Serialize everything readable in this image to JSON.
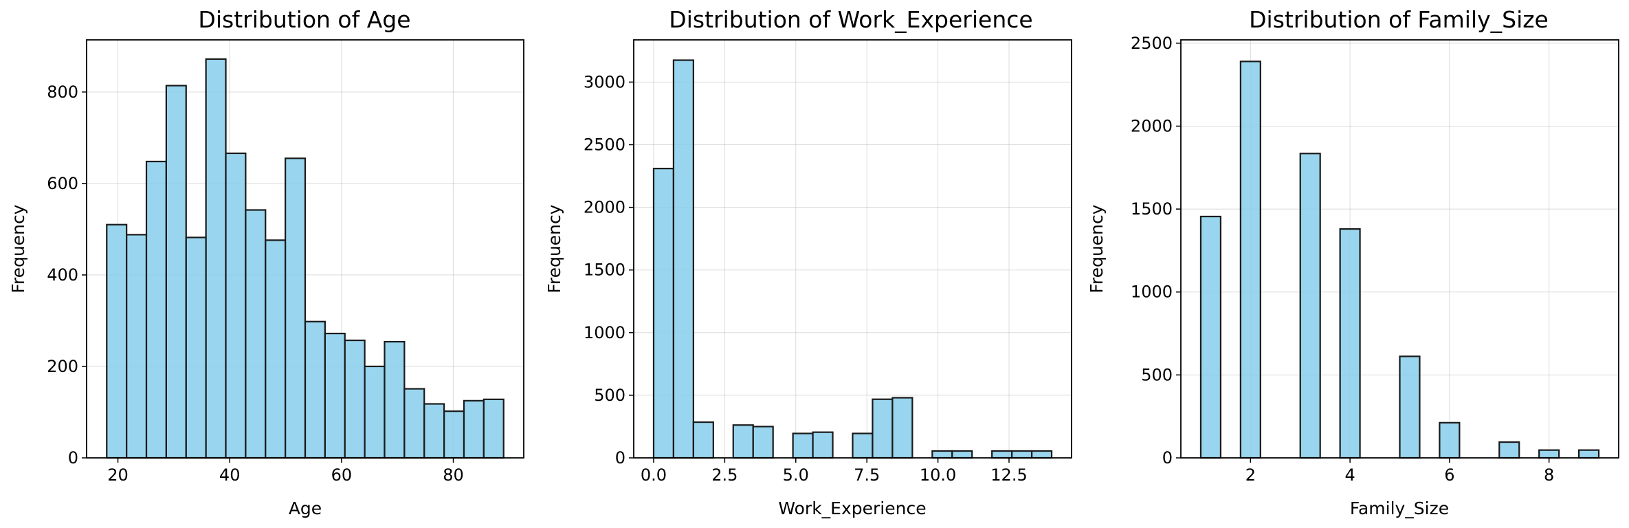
{
  "colors": {
    "bar_fill": "#87ceeb",
    "bar_edge": "#1a1a1a"
  },
  "chart_data": [
    {
      "type": "bar",
      "title": "Distribution of Age",
      "xlabel": "Age",
      "ylabel": "Frequency",
      "grid": true,
      "xlim": [
        14.4,
        92.6
      ],
      "ylim": [
        0,
        914
      ],
      "xticks": [
        20,
        40,
        60,
        80
      ],
      "xtick_labels": [
        "20",
        "40",
        "60",
        "80"
      ],
      "yticks": [
        0,
        200,
        400,
        600,
        800
      ],
      "ytick_labels": [
        "0",
        "200",
        "400",
        "600",
        "800"
      ],
      "bin_edges": [
        18,
        21.55,
        25.1,
        28.65,
        32.2,
        35.75,
        39.3,
        42.85,
        46.4,
        49.95,
        53.5,
        57.05,
        60.6,
        64.15,
        67.7,
        71.25,
        74.8,
        78.35,
        81.9,
        85.45,
        89
      ],
      "values": [
        510,
        488,
        648,
        814,
        482,
        872,
        666,
        542,
        476,
        655,
        298,
        272,
        257,
        200,
        254,
        151,
        118,
        102,
        125,
        128
      ]
    },
    {
      "type": "bar",
      "title": "Distribution of Work_Experience",
      "xlabel": "Work_Experience",
      "ylabel": "Frequency",
      "grid": true,
      "xlim": [
        -0.7,
        14.7
      ],
      "ylim": [
        0,
        3337
      ],
      "xticks": [
        0,
        2.5,
        5,
        7.5,
        10,
        12.5
      ],
      "xtick_labels": [
        "0.0",
        "2.5",
        "5.0",
        "7.5",
        "10.0",
        "12.5"
      ],
      "yticks": [
        0,
        500,
        1000,
        1500,
        2000,
        2500,
        3000
      ],
      "ytick_labels": [
        "0",
        "500",
        "1000",
        "1500",
        "2000",
        "2500",
        "3000"
      ],
      "bin_edges": [
        0,
        0.7,
        1.4,
        2.1,
        2.8,
        3.5,
        4.2,
        4.9,
        5.6,
        6.3,
        7.0,
        7.7,
        8.4,
        9.1,
        9.8,
        10.5,
        11.2,
        11.9,
        12.6,
        13.3,
        14.0
      ],
      "values": [
        2310,
        3175,
        285,
        0,
        262,
        250,
        0,
        195,
        205,
        0,
        195,
        468,
        480,
        0,
        55,
        55,
        0,
        55,
        55,
        55
      ]
    },
    {
      "type": "bar",
      "title": "Distribution of Family_Size",
      "xlabel": "Family_Size",
      "ylabel": "Frequency",
      "grid": true,
      "xlim": [
        0.6,
        9.4
      ],
      "ylim": [
        0,
        2520
      ],
      "xticks": [
        2,
        4,
        6,
        8
      ],
      "xtick_labels": [
        "2",
        "4",
        "6",
        "8"
      ],
      "yticks": [
        0,
        500,
        1000,
        1500,
        2000,
        2500
      ],
      "ytick_labels": [
        "0",
        "500",
        "1000",
        "1500",
        "2000",
        "2500"
      ],
      "bin_edges": [
        1,
        1.4,
        1.8,
        2.2,
        2.6,
        3.0,
        3.4,
        3.8,
        4.2,
        4.6,
        5.0,
        5.4,
        5.8,
        6.2,
        6.6,
        7.0,
        7.4,
        7.8,
        8.2,
        8.6,
        9.0
      ],
      "values": [
        1455,
        0,
        2390,
        0,
        0,
        1835,
        0,
        1380,
        0,
        0,
        612,
        0,
        212,
        0,
        0,
        95,
        0,
        47,
        0,
        47
      ]
    }
  ]
}
